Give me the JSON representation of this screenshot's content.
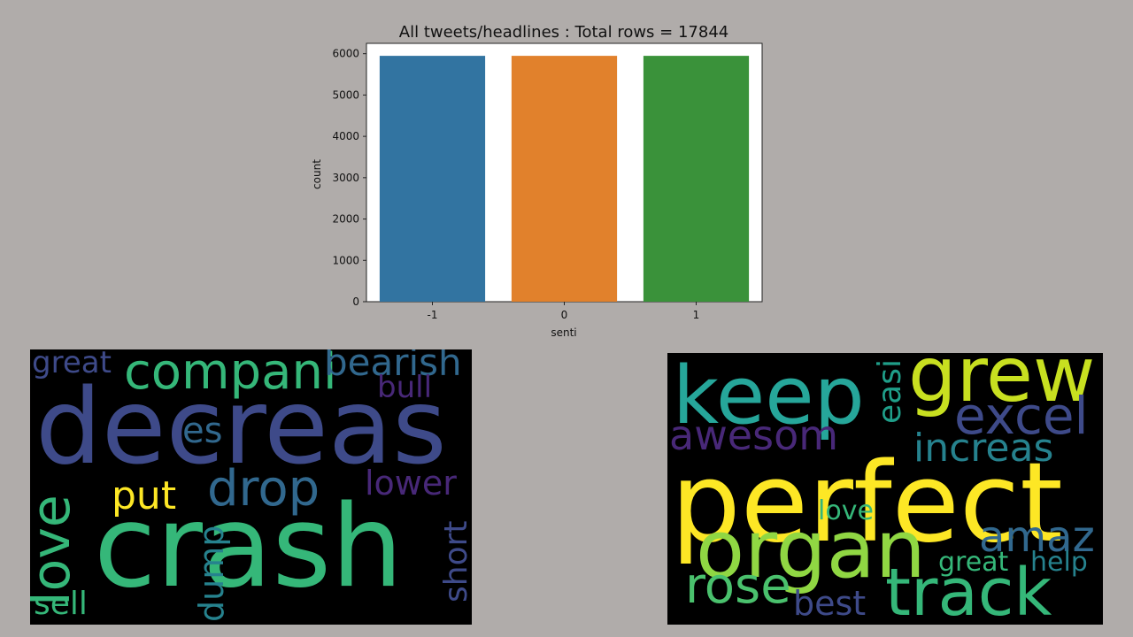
{
  "chart_data": {
    "type": "bar",
    "title": "All tweets/headlines : Total rows = 17844",
    "xlabel": "senti",
    "ylabel": "count",
    "categories": [
      "-1",
      "0",
      "1"
    ],
    "values": [
      5948,
      5948,
      5948
    ],
    "colors": [
      "#3274a1",
      "#e1812c",
      "#3a923a"
    ],
    "ylim": [
      0,
      6250
    ],
    "yticks": [
      0,
      1000,
      2000,
      3000,
      4000,
      5000,
      6000
    ],
    "grid": false
  },
  "wordclouds": {
    "negative": [
      {
        "text": "great",
        "color": "#3e4a89"
      },
      {
        "text": "compani",
        "color": "#35b779"
      },
      {
        "text": "bearish",
        "color": "#31688e"
      },
      {
        "text": "bull",
        "color": "#482878"
      },
      {
        "text": "decreas",
        "color": "#3e4a89"
      },
      {
        "text": "es",
        "color": "#31688e"
      },
      {
        "text": "drop",
        "color": "#31688e"
      },
      {
        "text": "lower",
        "color": "#482878"
      },
      {
        "text": "put",
        "color": "#fde725"
      },
      {
        "text": "love",
        "color": "#35b779"
      },
      {
        "text": "crash",
        "color": "#35b779"
      },
      {
        "text": "short",
        "color": "#3e4a89"
      },
      {
        "text": "dump",
        "color": "#26828e"
      },
      {
        "text": "sell",
        "color": "#35b779"
      }
    ],
    "positive": [
      {
        "text": "keep",
        "color": "#26a69a"
      },
      {
        "text": "grew",
        "color": "#c8e020"
      },
      {
        "text": "easi",
        "color": "#1f9e89"
      },
      {
        "text": "excel",
        "color": "#3e4a89"
      },
      {
        "text": "awesom",
        "color": "#482878"
      },
      {
        "text": "increas",
        "color": "#26828e"
      },
      {
        "text": "perfect",
        "color": "#fde725"
      },
      {
        "text": "love",
        "color": "#35b779"
      },
      {
        "text": "organ",
        "color": "#90d743"
      },
      {
        "text": "amaz",
        "color": "#31688e"
      },
      {
        "text": "great",
        "color": "#35b779"
      },
      {
        "text": "help",
        "color": "#26828e"
      },
      {
        "text": "rose",
        "color": "#4ac16d"
      },
      {
        "text": "track",
        "color": "#35b779"
      },
      {
        "text": "best",
        "color": "#3e4a89"
      }
    ]
  }
}
